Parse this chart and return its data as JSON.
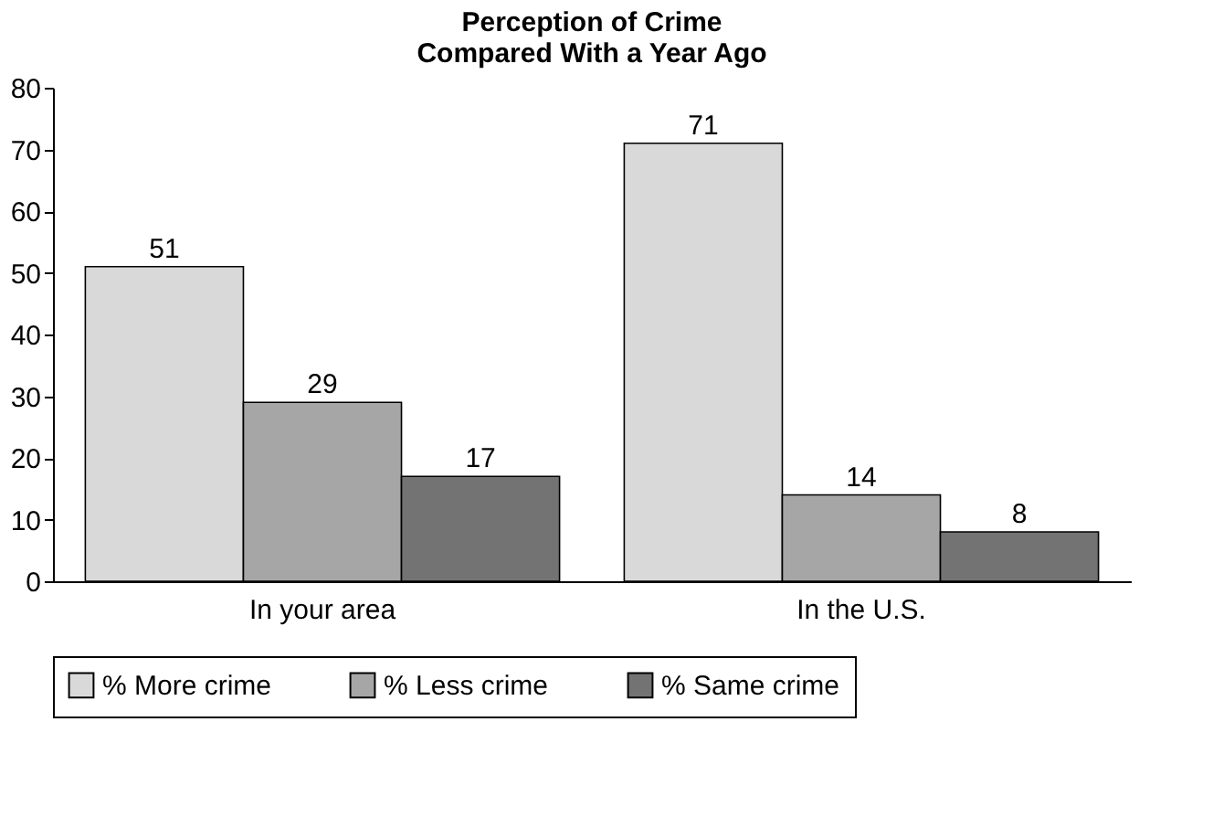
{
  "chart_data": {
    "type": "bar",
    "title": "Perception of Crime\nCompared With a Year Ago",
    "categories": [
      "In your area",
      "In the U.S."
    ],
    "series": [
      {
        "name": "% More crime",
        "color": "#d9d9d9",
        "values": [
          51,
          71
        ]
      },
      {
        "name": "% Less crime",
        "color": "#a6a6a6",
        "values": [
          29,
          14
        ]
      },
      {
        "name": "% Same crime",
        "color": "#737373",
        "values": [
          17,
          8
        ]
      }
    ],
    "ylim": [
      0,
      80
    ],
    "yticks": [
      0,
      10,
      20,
      30,
      40,
      50,
      60,
      70,
      80
    ],
    "grid": false,
    "legend": "bottom",
    "data_labels": true
  }
}
